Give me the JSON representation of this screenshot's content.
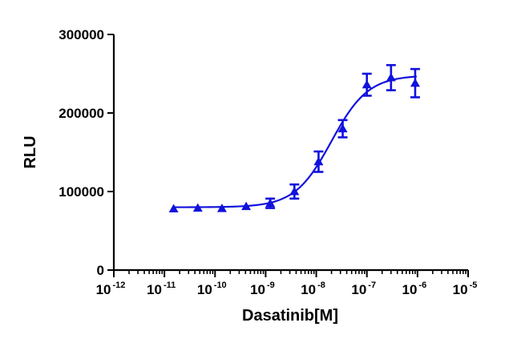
{
  "chart_data": {
    "type": "scatter",
    "xlabel": "Dasatinib[M]",
    "ylabel": "RLU",
    "x_scale": "log10",
    "xlim": [
      1e-12,
      1e-05
    ],
    "ylim": [
      0,
      300000
    ],
    "y_ticks": [
      "0",
      "100000",
      "200000",
      "300000"
    ],
    "x_ticks": [
      {
        "base": "10",
        "exp": "-12"
      },
      {
        "base": "10",
        "exp": "-11"
      },
      {
        "base": "10",
        "exp": "-10"
      },
      {
        "base": "10",
        "exp": "-9"
      },
      {
        "base": "10",
        "exp": "-8"
      },
      {
        "base": "10",
        "exp": "-7"
      },
      {
        "base": "10",
        "exp": "-6"
      },
      {
        "base": "10",
        "exp": "-5"
      }
    ],
    "color": "#1111dd",
    "marker": "triangle",
    "fit": "four-parameter logistic",
    "fit_params": {
      "bottom": 80000,
      "top": 248000,
      "log_ec50": -7.7,
      "hill": 1.2
    },
    "series": [
      {
        "x": [
          1.52e-11,
          4.57e-11,
          1.37e-10,
          4.12e-10,
          1.23e-09,
          3.7e-09,
          1.11e-08,
          3.33e-08,
          1e-07,
          3e-07,
          9e-07
        ],
        "y": [
          78000,
          79000,
          78500,
          81000,
          85000,
          100000,
          138000,
          180000,
          236000,
          245000,
          238000
        ],
        "err": [
          0,
          0,
          0,
          0,
          6000,
          9000,
          13000,
          11000,
          14000,
          16000,
          18000
        ]
      }
    ]
  }
}
